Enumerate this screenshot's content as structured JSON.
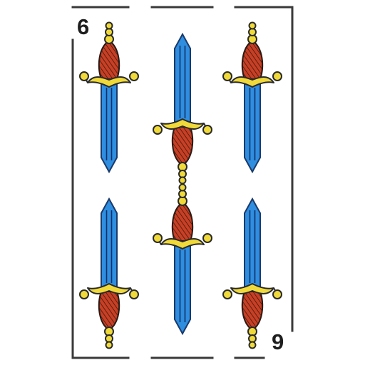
{
  "card": {
    "suit": "swords",
    "top_index": "6",
    "bottom_index": "9",
    "pip_count": 6,
    "colors": {
      "frame": "#3a3a3a",
      "blade": "#2f8ee0",
      "blade_edge": "#1a4f9a",
      "guard": "#f0da3a",
      "guard_outline": "#2a2a2a",
      "grip": "#c93f24",
      "index_text": "#1e1e1e"
    },
    "pips": [
      {
        "icon": "sword-icon",
        "orientation": "point-down"
      },
      {
        "icon": "sword-icon",
        "orientation": "point-up"
      },
      {
        "icon": "sword-icon",
        "orientation": "point-down"
      },
      {
        "icon": "sword-icon",
        "orientation": "point-up"
      },
      {
        "icon": "sword-icon",
        "orientation": "point-down"
      },
      {
        "icon": "sword-icon",
        "orientation": "point-up"
      }
    ]
  }
}
